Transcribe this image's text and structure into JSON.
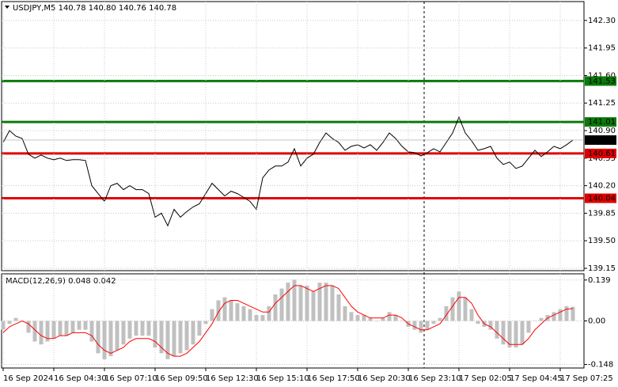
{
  "chart_data": [
    {
      "type": "line",
      "title": "USDJPY,M5  140.78 140.80 140.76 140.78",
      "color": "#000000",
      "values": [
        140.75,
        140.9,
        140.83,
        140.8,
        140.6,
        140.55,
        140.59,
        140.55,
        140.53,
        140.55,
        140.52,
        140.53,
        140.53,
        140.52,
        140.2,
        140.1,
        140.0,
        140.2,
        140.23,
        140.15,
        140.2,
        140.15,
        140.15,
        140.1,
        139.8,
        139.85,
        139.69,
        139.9,
        139.8,
        139.87,
        139.93,
        139.97,
        140.1,
        140.23,
        140.15,
        140.07,
        140.13,
        140.1,
        140.05,
        140.0,
        139.9,
        140.3,
        140.4,
        140.45,
        140.45,
        140.5,
        140.67,
        140.45,
        140.55,
        140.6,
        140.75,
        140.87,
        140.8,
        140.75,
        140.65,
        140.7,
        140.72,
        140.68,
        140.72,
        140.65,
        140.75,
        140.87,
        140.8,
        140.7,
        140.63,
        140.62,
        140.58,
        140.62,
        140.67,
        140.63,
        140.75,
        140.87,
        141.07,
        140.87,
        140.77,
        140.65,
        140.67,
        140.7,
        140.55,
        140.47,
        140.5,
        140.42,
        140.45,
        140.55,
        140.65,
        140.57,
        140.63,
        140.7,
        140.67,
        140.72,
        140.78
      ],
      "xlim": [
        0,
        92
      ],
      "ylim": [
        139.12,
        142.54
      ],
      "yticks": [
        {
          "value": 142.3,
          "label": "142.30"
        },
        141.95,
        {
          "value": 141.6,
          "label": "141.60"
        },
        141.25,
        {
          "value": 140.9,
          "label": "140.90"
        },
        140.55,
        {
          "value": 140.2,
          "label": "140.20"
        },
        139.85,
        {
          "value": 139.5,
          "label": "139.50"
        },
        139.15
      ],
      "levels": [
        {
          "value": 141.53,
          "color": "#0a7a0a"
        },
        {
          "value": 141.01,
          "color": "#0a7a0a"
        },
        {
          "value": 140.61,
          "color": "#e00000"
        },
        {
          "value": 140.04,
          "color": "#e00000"
        }
      ],
      "last_price": 140.78,
      "grid": true
    },
    {
      "type": "bar",
      "title": "MACD(12,26,9) 0.048 0.042",
      "series": [
        {
          "type": "bar",
          "color": "#c0c0c0",
          "values": [
            -0.03,
            -0.01,
            0.01,
            0.0,
            -0.04,
            -0.07,
            -0.08,
            -0.07,
            -0.06,
            -0.05,
            -0.05,
            -0.04,
            -0.03,
            -0.03,
            -0.07,
            -0.11,
            -0.13,
            -0.12,
            -0.1,
            -0.08,
            -0.06,
            -0.05,
            -0.05,
            -0.05,
            -0.09,
            -0.11,
            -0.13,
            -0.12,
            -0.11,
            -0.1,
            -0.08,
            -0.05,
            -0.01,
            0.04,
            0.07,
            0.08,
            0.07,
            0.06,
            0.05,
            0.04,
            0.02,
            0.02,
            0.05,
            0.09,
            0.11,
            0.13,
            0.14,
            0.12,
            0.12,
            0.1,
            0.13,
            0.13,
            0.12,
            0.09,
            0.05,
            0.03,
            0.02,
            0.02,
            0.01,
            0.0,
            0.01,
            0.03,
            0.02,
            0.0,
            -0.02,
            -0.03,
            -0.04,
            -0.03,
            -0.01,
            0.01,
            0.05,
            0.08,
            0.1,
            0.08,
            0.04,
            -0.01,
            -0.02,
            -0.03,
            -0.06,
            -0.08,
            -0.09,
            -0.09,
            -0.08,
            -0.04,
            0.0,
            0.01,
            0.02,
            0.03,
            0.04,
            0.05,
            0.048
          ]
        },
        {
          "type": "line",
          "color": "#ff0000",
          "values": [
            -0.04,
            -0.02,
            -0.01,
            0.0,
            -0.01,
            -0.03,
            -0.05,
            -0.06,
            -0.06,
            -0.05,
            -0.05,
            -0.04,
            -0.04,
            -0.04,
            -0.05,
            -0.08,
            -0.1,
            -0.11,
            -0.1,
            -0.09,
            -0.07,
            -0.06,
            -0.06,
            -0.06,
            -0.07,
            -0.09,
            -0.11,
            -0.12,
            -0.12,
            -0.11,
            -0.09,
            -0.07,
            -0.04,
            -0.01,
            0.03,
            0.06,
            0.07,
            0.07,
            0.06,
            0.05,
            0.04,
            0.03,
            0.03,
            0.06,
            0.08,
            0.1,
            0.12,
            0.12,
            0.11,
            0.1,
            0.11,
            0.12,
            0.12,
            0.11,
            0.08,
            0.05,
            0.03,
            0.02,
            0.01,
            0.01,
            0.01,
            0.02,
            0.02,
            0.01,
            -0.01,
            -0.02,
            -0.03,
            -0.03,
            -0.02,
            -0.01,
            0.02,
            0.05,
            0.08,
            0.08,
            0.06,
            0.02,
            -0.01,
            -0.02,
            -0.04,
            -0.06,
            -0.08,
            -0.08,
            -0.08,
            -0.06,
            -0.03,
            -0.01,
            0.01,
            0.02,
            0.03,
            0.04,
            0.042
          ]
        }
      ],
      "xlim": [
        0,
        92
      ],
      "ylim": [
        -0.16,
        0.16
      ],
      "yticks": [
        0.139,
        {
          "value": 0,
          "label": "0.00"
        },
        -0.148
      ],
      "xticks": [
        {
          "value": 0,
          "label": "16 Sep 2024"
        },
        {
          "value": 8,
          "label": "16 Sep 04:30"
        },
        {
          "value": 16,
          "label": "16 Sep 07:10"
        },
        {
          "value": 24,
          "label": "16 Sep 09:50"
        },
        {
          "value": 32,
          "label": "16 Sep 12:30"
        },
        {
          "value": 40,
          "label": "16 Sep 15:10"
        },
        {
          "value": 48,
          "label": "16 Sep 17:50"
        },
        {
          "value": 56,
          "label": "16 Sep 20:30"
        },
        {
          "value": 64,
          "label": "16 Sep 23:10"
        },
        {
          "value": 72,
          "label": "17 Sep 02:05"
        },
        {
          "value": 80,
          "label": "17 Sep 04:45"
        },
        {
          "value": 88,
          "label": "17 Sep 07:25"
        }
      ],
      "grid": true
    }
  ]
}
